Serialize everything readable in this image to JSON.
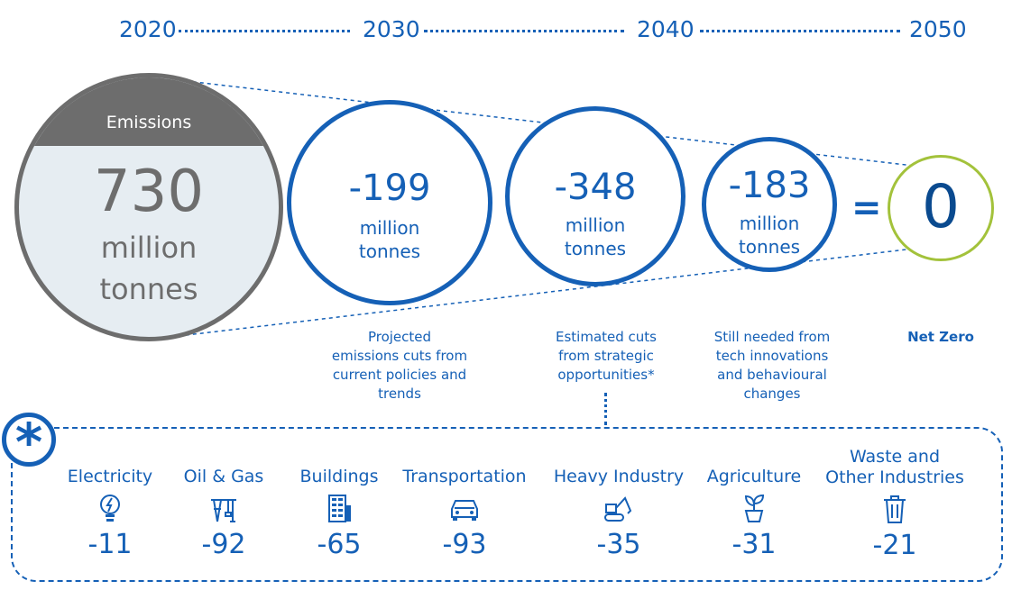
{
  "timeline": {
    "years": [
      "2020",
      "2030",
      "2040",
      "2050"
    ]
  },
  "emissions": {
    "header": "Emissions",
    "value": "730",
    "unit_line1": "million",
    "unit_line2": "tonnes"
  },
  "cuts": [
    {
      "value": "-199",
      "unit_line1": "million",
      "unit_line2": "tonnes",
      "caption": [
        "Projected",
        "emissions cuts from",
        "current policies and",
        "trends"
      ]
    },
    {
      "value": "-348",
      "unit_line1": "million",
      "unit_line2": "tonnes",
      "caption": [
        "Estimated cuts",
        "from strategic",
        "opportunities*"
      ]
    },
    {
      "value": "-183",
      "unit_line1": "million",
      "unit_line2": "tonnes",
      "caption": [
        "Still needed from",
        "tech innovations",
        "and behavioural",
        "changes"
      ]
    }
  ],
  "equals": "=",
  "net_zero": {
    "value": "0",
    "label": "Net Zero"
  },
  "asterisk": "*",
  "sectors": [
    {
      "name": "Electricity",
      "value": "-11",
      "icon": "lightbulb-icon"
    },
    {
      "name": "Oil & Gas",
      "value": "-92",
      "icon": "oil-rig-icon"
    },
    {
      "name": "Buildings",
      "value": "-65",
      "icon": "building-icon"
    },
    {
      "name": "Transportation",
      "value": "-93",
      "icon": "car-icon"
    },
    {
      "name": "Heavy Industry",
      "value": "-35",
      "icon": "excavator-icon"
    },
    {
      "name": "Agriculture",
      "value": "-31",
      "icon": "plant-icon"
    },
    {
      "name_line1": "Waste and",
      "name_line2": "Other Industries",
      "value": "-21",
      "icon": "trash-can-icon"
    }
  ],
  "colors": {
    "blue": "#1560b6",
    "dark_blue": "#0a4a8f",
    "grey": "#6d6d6d",
    "light_blue_fill": "#e6edf2",
    "green": "#a3c23b"
  }
}
